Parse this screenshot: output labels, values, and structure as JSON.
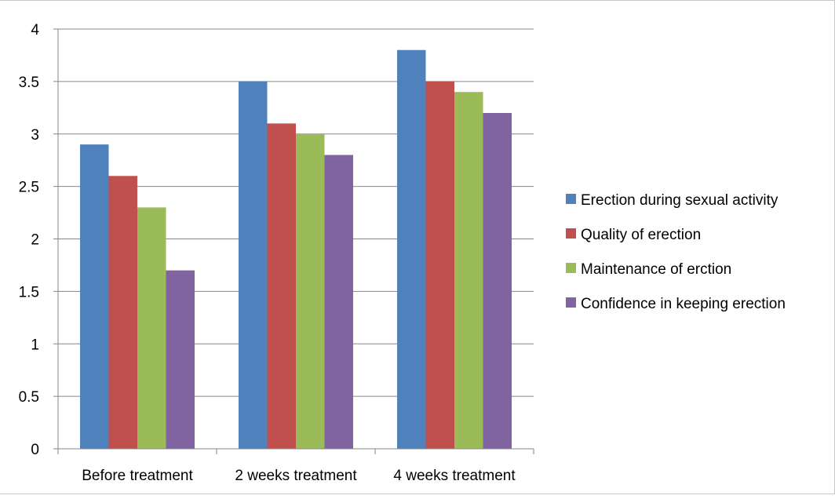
{
  "chart_data": {
    "type": "bar",
    "categories": [
      "Before treatment",
      "2 weeks treatment",
      "4 weeks treatment"
    ],
    "series": [
      {
        "name": "Erection during sexual activity",
        "color": "#4F81BD",
        "values": [
          2.9,
          3.5,
          3.8
        ]
      },
      {
        "name": "Quality of erection",
        "color": "#C0504D",
        "values": [
          2.6,
          3.1,
          3.5
        ]
      },
      {
        "name": "Maintenance of erction",
        "color": "#9BBB59",
        "values": [
          2.3,
          3.0,
          3.4
        ]
      },
      {
        "name": "Confidence in keeping erection",
        "color": "#8064A2",
        "values": [
          1.7,
          2.8,
          3.2
        ]
      }
    ],
    "ylim": [
      0,
      4
    ],
    "yticks": [
      "0",
      "0.5",
      "1",
      "1.5",
      "2",
      "2.5",
      "3",
      "3.5",
      "4"
    ],
    "grid": true,
    "legend_position": "right",
    "title": "",
    "xlabel": "",
    "ylabel": ""
  }
}
